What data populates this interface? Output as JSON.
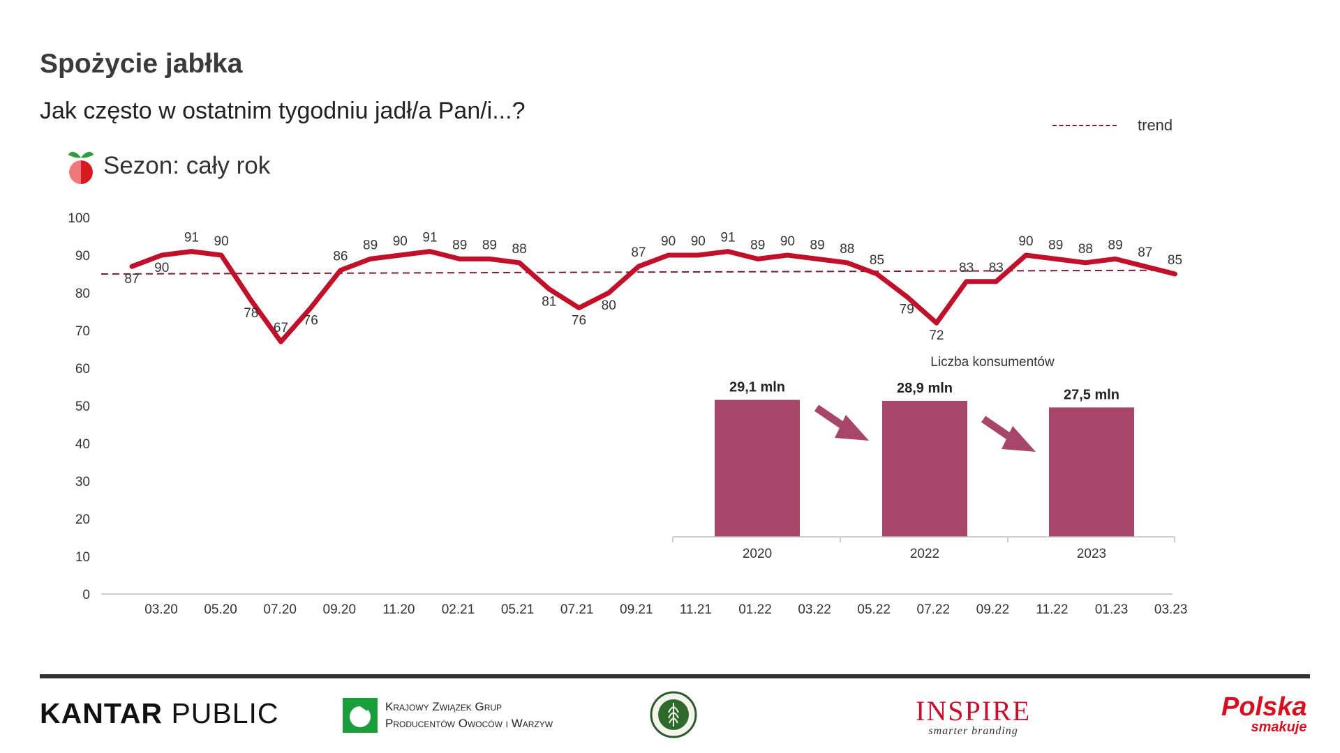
{
  "title": "Spożycie jabłka",
  "subtitle": "Jak często w ostatnim tygodniu jadł/a Pan/i...?",
  "season_label": "Sezon: cały rok",
  "legend": {
    "trend_label": "trend"
  },
  "chart_data": [
    {
      "type": "line",
      "yticks": [
        "0",
        "10",
        "20",
        "30",
        "40",
        "50",
        "60",
        "70",
        "80",
        "90",
        "100"
      ],
      "ylim": [
        0,
        100
      ],
      "x_tick_labels": [
        "03.20",
        "05.20",
        "07.20",
        "09.20",
        "11.20",
        "02.21",
        "05.21",
        "07.21",
        "09.21",
        "11.21",
        "01.22",
        "03.22",
        "05.22",
        "07.22",
        "09.22",
        "11.22",
        "01.23",
        "03.23"
      ],
      "series": [
        {
          "values": [
            87,
            90,
            91,
            90,
            78,
            67,
            76,
            86,
            89,
            90,
            91,
            89,
            89,
            88,
            81,
            76,
            80,
            87,
            90,
            90,
            91,
            89,
            90,
            89,
            88,
            85,
            79,
            72,
            83,
            83,
            90,
            89,
            88,
            89,
            87,
            85
          ],
          "color": "#c0102a"
        },
        {
          "name": "trend",
          "values": [
            85.0,
            86.0
          ],
          "style": "dashed",
          "color": "#7b1f2e"
        }
      ]
    },
    {
      "type": "bar",
      "title": "Liczba konsumentów",
      "categories": [
        "2020",
        "2022",
        "2023"
      ],
      "values": [
        29.1,
        28.9,
        27.5
      ],
      "labels": [
        "29,1 mln",
        "28,9 mln",
        "27,5 mln"
      ],
      "color": "#a8466a"
    }
  ],
  "footer": {
    "kantar_bold": "KANTAR",
    "kantar_rest": " PUBLIC",
    "kzg_line1": "Krajowy Związek Grup",
    "kzg_line2": "Producentów Owoców i Warzyw",
    "inspire_main": "INSPIRE",
    "inspire_tag": "smarter branding",
    "polska_main": "Polska",
    "polska_sub": "smakuje"
  }
}
